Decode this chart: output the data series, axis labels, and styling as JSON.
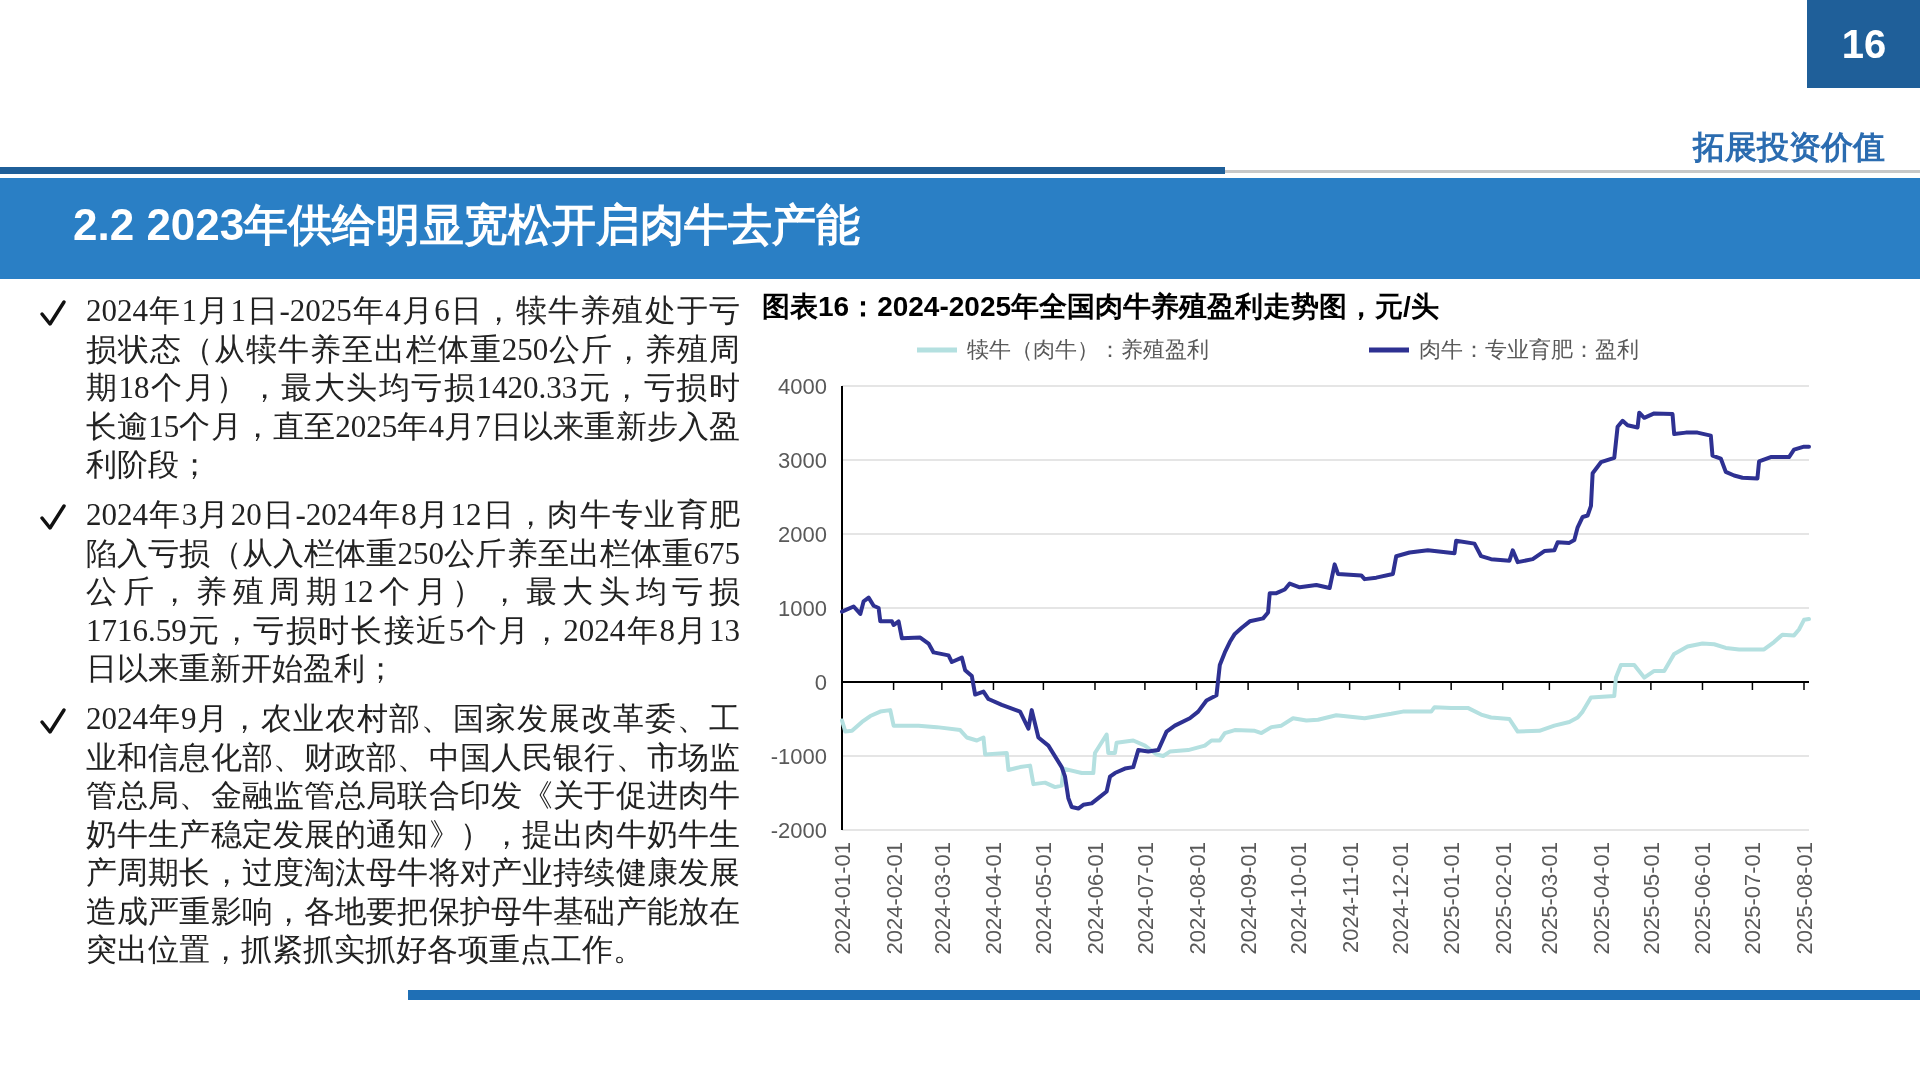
{
  "chart_data": {
    "type": "line",
    "title": "图表16：2024-2025年全国肉牛养殖盈利走势图，元/头",
    "annotations": [
      "16",
      "拓展投资价值",
      "2.2 2023年供给明显宽松开启肉牛去产能",
      "2024年1月1日-2025年4月6日，犊牛养殖处于亏损状态（从犊牛养至出栏体重250公斤，养殖周期18个月），最大头均亏损1420.33元，亏损时长逾15个月，直至2025年4月7日以来重新步入盈利阶段；",
      "2024年3月20日-2024年8月12日，肉牛专业育肥陷入亏损（从入栏体重250公斤养至出栏体重675公斤，养殖周期12个月），最大头均亏损1716.59元，亏损时长接近5个月，2024年8月13日以来重新开始盈利；",
      "2024年9月，农业农村部、国家发展改革委、工业和信息化部、财政部、中国人民银行、市场监管总局、金融监管总局联合印发《关于促进肉牛奶牛生产稳定发展的通知》），提出肉牛奶牛生产周期长，过度淘汰母牛将对产业持续健康发展造成严重影响，各地要把保护母牛基础产能放在突出位置，抓紧抓实抓好各项重点工作。"
    ],
    "xlim": [
      "2024-01-01",
      "2025-08-04"
    ],
    "xticks": [
      "2024-01-01",
      "2024-02-01",
      "2024-03-01",
      "2024-04-01",
      "2024-05-01",
      "2024-06-01",
      "2024-07-01",
      "2024-08-01",
      "2024-09-01",
      "2024-10-01",
      "2024-11-01",
      "2024-12-01",
      "2025-01-01",
      "2025-02-01",
      "2025-03-01",
      "2025-04-01",
      "2025-05-01",
      "2025-06-01",
      "2025-07-01",
      "2025-08-01"
    ],
    "ylim": [
      -2000,
      4000
    ],
    "yticks": [
      -2000,
      -1000,
      0,
      1000,
      2000,
      3000,
      4000
    ],
    "grid": "y",
    "legend": "top",
    "series": [
      {
        "name": "犊牛（肉牛）：养殖盈利",
        "color": "#b4e0e0",
        "x": [
          "2024-01-01",
          "2024-01-03",
          "2024-01-07",
          "2024-01-13",
          "2024-01-18",
          "2024-01-24",
          "2024-01-30",
          "2024-02-01",
          "2024-02-16",
          "2024-02-27",
          "2024-03-12",
          "2024-03-16",
          "2024-03-22",
          "2024-03-26",
          "2024-03-27",
          "2024-04-09",
          "2024-04-10",
          "2024-04-17",
          "2024-04-23",
          "2024-04-25",
          "2024-05-02",
          "2024-05-08",
          "2024-05-12",
          "2024-05-13",
          "2024-05-24",
          "2024-05-31",
          "2024-06-01",
          "2024-06-08",
          "2024-06-09",
          "2024-06-13",
          "2024-06-14",
          "2024-06-24",
          "2024-07-01",
          "2024-07-08",
          "2024-07-12",
          "2024-07-16",
          "2024-07-27",
          "2024-08-06",
          "2024-08-10",
          "2024-08-15",
          "2024-08-18",
          "2024-08-24",
          "2024-09-05",
          "2024-09-09",
          "2024-09-15",
          "2024-09-21",
          "2024-09-28",
          "2024-10-06",
          "2024-10-13",
          "2024-10-24",
          "2024-11-10",
          "2024-11-26",
          "2024-12-03",
          "2024-12-20",
          "2024-12-22",
          "2025-01-01",
          "2025-01-11",
          "2025-01-19",
          "2025-01-25",
          "2025-02-05",
          "2025-02-10",
          "2025-02-23",
          "2025-03-04",
          "2025-03-13",
          "2025-03-18",
          "2025-03-21",
          "2025-03-26",
          "2025-04-09",
          "2025-04-10",
          "2025-04-13",
          "2025-04-21",
          "2025-04-27",
          "2025-05-03",
          "2025-05-09",
          "2025-05-15",
          "2025-05-23",
          "2025-06-01",
          "2025-06-08",
          "2025-06-15",
          "2025-06-23",
          "2025-07-08",
          "2025-07-14",
          "2025-07-19",
          "2025-07-26",
          "2025-07-29",
          "2025-08-01",
          "2025-08-04"
        ],
        "values": [
          -520,
          -670,
          -660,
          -540,
          -460,
          -400,
          -380,
          -590,
          -590,
          -610,
          -650,
          -750,
          -790,
          -750,
          -980,
          -960,
          -1190,
          -1150,
          -1130,
          -1380,
          -1360,
          -1420,
          -1400,
          -1170,
          -1230,
          -1230,
          -960,
          -710,
          -960,
          -960,
          -820,
          -790,
          -860,
          -980,
          -1000,
          -940,
          -920,
          -860,
          -790,
          -790,
          -690,
          -650,
          -660,
          -690,
          -610,
          -590,
          -490,
          -520,
          -510,
          -450,
          -490,
          -430,
          -400,
          -400,
          -340,
          -350,
          -350,
          -440,
          -480,
          -500,
          -670,
          -660,
          -590,
          -540,
          -480,
          -400,
          -210,
          -190,
          60,
          230,
          230,
          60,
          150,
          150,
          380,
          480,
          520,
          510,
          460,
          440,
          440,
          540,
          640,
          630,
          710,
          840,
          850
        ]
      },
      {
        "name": "肉牛：专业育肥：盈利",
        "color": "#2e3192",
        "x": [
          "2024-01-01",
          "2024-01-08",
          "2024-01-12",
          "2024-01-14",
          "2024-01-17",
          "2024-01-20",
          "2024-01-23",
          "2024-01-24",
          "2024-01-31",
          "2024-02-01",
          "2024-02-04",
          "2024-02-06",
          "2024-02-17",
          "2024-02-22",
          "2024-02-25",
          "2024-03-05",
          "2024-03-07",
          "2024-03-13",
          "2024-03-15",
          "2024-03-19",
          "2024-03-21",
          "2024-03-26",
          "2024-03-29",
          "2024-04-06",
          "2024-04-17",
          "2024-04-22",
          "2024-04-24",
          "2024-04-28",
          "2024-05-04",
          "2024-05-12",
          "2024-05-14",
          "2024-05-16",
          "2024-05-18",
          "2024-05-22",
          "2024-05-25",
          "2024-05-30",
          "2024-06-03",
          "2024-06-08",
          "2024-06-10",
          "2024-06-13",
          "2024-06-19",
          "2024-06-24",
          "2024-06-27",
          "2024-07-03",
          "2024-07-09",
          "2024-07-14",
          "2024-07-19",
          "2024-07-28",
          "2024-08-02",
          "2024-08-07",
          "2024-08-13",
          "2024-08-15",
          "2024-08-18",
          "2024-08-21",
          "2024-08-24",
          "2024-08-28",
          "2024-09-02",
          "2024-09-10",
          "2024-09-13",
          "2024-09-14",
          "2024-09-18",
          "2024-09-23",
          "2024-09-26",
          "2024-10-02",
          "2024-10-12",
          "2024-10-20",
          "2024-10-23",
          "2024-10-25",
          "2024-11-08",
          "2024-11-10",
          "2024-11-17",
          "2024-11-27",
          "2024-11-29",
          "2024-12-07",
          "2024-12-18",
          "2025-01-03",
          "2025-01-04",
          "2025-01-15",
          "2025-01-19",
          "2025-01-25",
          "2025-02-05",
          "2025-02-07",
          "2025-02-10",
          "2025-02-19",
          "2025-02-26",
          "2025-03-04",
          "2025-03-06",
          "2025-03-13",
          "2025-03-16",
          "2025-03-18",
          "2025-03-21",
          "2025-03-24",
          "2025-03-26",
          "2025-03-27",
          "2025-04-01",
          "2025-04-09",
          "2025-04-11",
          "2025-04-14",
          "2025-04-17",
          "2025-04-23",
          "2025-04-24",
          "2025-04-27",
          "2025-05-03",
          "2025-05-14",
          "2025-05-15",
          "2025-05-22",
          "2025-05-29",
          "2025-06-06",
          "2025-06-07",
          "2025-06-12",
          "2025-06-15",
          "2025-06-20",
          "2025-06-25",
          "2025-07-04",
          "2025-07-05",
          "2025-07-12",
          "2025-07-23",
          "2025-07-26",
          "2025-08-01",
          "2025-08-04"
        ],
        "values": [
          950,
          1020,
          920,
          1090,
          1140,
          1030,
          1000,
          820,
          820,
          770,
          820,
          590,
          600,
          520,
          400,
          360,
          270,
          330,
          160,
          80,
          -170,
          -130,
          -230,
          -310,
          -400,
          -630,
          -380,
          -750,
          -860,
          -1150,
          -1280,
          -1570,
          -1690,
          -1710,
          -1660,
          -1640,
          -1570,
          -1480,
          -1280,
          -1230,
          -1170,
          -1150,
          -920,
          -940,
          -920,
          -670,
          -590,
          -490,
          -400,
          -250,
          -180,
          230,
          400,
          540,
          650,
          730,
          820,
          860,
          940,
          1200,
          1200,
          1250,
          1330,
          1280,
          1310,
          1270,
          1590,
          1460,
          1440,
          1390,
          1410,
          1460,
          1700,
          1750,
          1780,
          1740,
          1910,
          1870,
          1700,
          1660,
          1640,
          1780,
          1620,
          1660,
          1770,
          1780,
          1890,
          1880,
          1920,
          2090,
          2230,
          2250,
          2380,
          2820,
          2970,
          3030,
          3450,
          3530,
          3470,
          3440,
          3640,
          3570,
          3630,
          3620,
          3350,
          3370,
          3370,
          3330,
          3060,
          3020,
          2840,
          2790,
          2760,
          2750,
          2980,
          3040,
          3040,
          3140,
          3180,
          3180
        ]
      }
    ]
  }
}
